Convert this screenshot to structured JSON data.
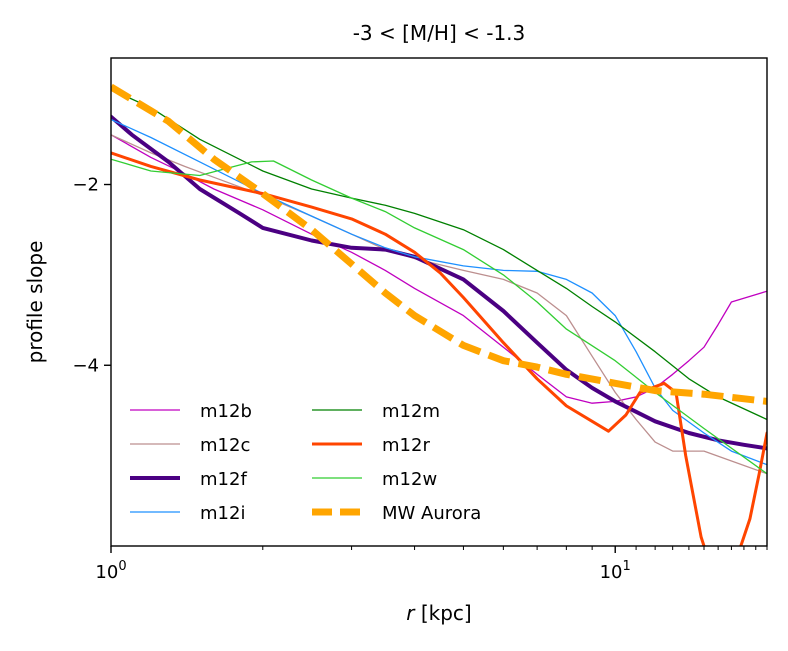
{
  "chart_data": {
    "type": "line",
    "title": "-3 < [M/H] < -1.3",
    "xlabel_italic": "r",
    "xlabel_rest": " [kpc]",
    "ylabel": "profile slope",
    "xscale": "log",
    "xlim": [
      1,
      20
    ],
    "ylim": [
      -6.0,
      -0.6
    ],
    "x_major_ticks": [
      {
        "value": 1,
        "base": "10",
        "exp": "0"
      },
      {
        "value": 10,
        "base": "10",
        "exp": "1"
      }
    ],
    "y_ticks": [
      {
        "value": -2,
        "label": "−2"
      },
      {
        "value": -4,
        "label": "−4"
      }
    ],
    "grid": false,
    "legend": {
      "placement": "lower-left",
      "columns": 2
    },
    "series": [
      {
        "name": "m12b",
        "color": "#c000c0",
        "width": 1.3,
        "points": [
          [
            1,
            -1.45
          ],
          [
            1.2,
            -1.7
          ],
          [
            1.4,
            -1.88
          ],
          [
            1.6,
            -2.05
          ],
          [
            2.0,
            -2.28
          ],
          [
            2.5,
            -2.55
          ],
          [
            3.0,
            -2.75
          ],
          [
            3.5,
            -2.95
          ],
          [
            4.0,
            -3.15
          ],
          [
            5.0,
            -3.45
          ],
          [
            6.0,
            -3.8
          ],
          [
            7.0,
            -4.1
          ],
          [
            8.0,
            -4.35
          ],
          [
            9.0,
            -4.42
          ],
          [
            10,
            -4.4
          ],
          [
            11,
            -4.35
          ],
          [
            12,
            -4.25
          ],
          [
            13,
            -4.1
          ],
          [
            14,
            -3.95
          ],
          [
            15,
            -3.8
          ],
          [
            16,
            -3.55
          ],
          [
            17,
            -3.3
          ],
          [
            20,
            -3.18
          ]
        ]
      },
      {
        "name": "m12c",
        "color": "#bc8f8f",
        "width": 1.3,
        "points": [
          [
            1,
            -1.45
          ],
          [
            1.2,
            -1.65
          ],
          [
            1.4,
            -1.8
          ],
          [
            1.6,
            -1.92
          ],
          [
            2.0,
            -2.12
          ],
          [
            2.5,
            -2.35
          ],
          [
            3.0,
            -2.55
          ],
          [
            3.5,
            -2.72
          ],
          [
            4.0,
            -2.82
          ],
          [
            5.0,
            -2.95
          ],
          [
            6.0,
            -3.05
          ],
          [
            7.0,
            -3.2
          ],
          [
            8.0,
            -3.45
          ],
          [
            9.0,
            -3.9
          ],
          [
            10,
            -4.3
          ],
          [
            11,
            -4.6
          ],
          [
            12,
            -4.85
          ],
          [
            13,
            -4.95
          ],
          [
            15,
            -4.95
          ],
          [
            20,
            -5.2
          ]
        ]
      },
      {
        "name": "m12f",
        "color": "#4b0082",
        "width": 4.0,
        "points": [
          [
            1,
            -1.25
          ],
          [
            1.1,
            -1.45
          ],
          [
            1.3,
            -1.75
          ],
          [
            1.5,
            -2.05
          ],
          [
            1.8,
            -2.32
          ],
          [
            2.0,
            -2.48
          ],
          [
            2.5,
            -2.62
          ],
          [
            3.0,
            -2.7
          ],
          [
            3.5,
            -2.72
          ],
          [
            4.0,
            -2.8
          ],
          [
            5.0,
            -3.05
          ],
          [
            6.0,
            -3.4
          ],
          [
            7.0,
            -3.75
          ],
          [
            8.0,
            -4.05
          ],
          [
            9.0,
            -4.25
          ],
          [
            10,
            -4.4
          ],
          [
            12,
            -4.62
          ],
          [
            14,
            -4.75
          ],
          [
            16,
            -4.83
          ],
          [
            18,
            -4.88
          ],
          [
            20,
            -4.92
          ]
        ]
      },
      {
        "name": "m12i",
        "color": "#1e90ff",
        "width": 1.3,
        "points": [
          [
            1,
            -1.28
          ],
          [
            1.2,
            -1.48
          ],
          [
            1.5,
            -1.75
          ],
          [
            2.0,
            -2.1
          ],
          [
            2.5,
            -2.35
          ],
          [
            3.0,
            -2.55
          ],
          [
            3.5,
            -2.7
          ],
          [
            4.0,
            -2.8
          ],
          [
            5.0,
            -2.9
          ],
          [
            6.0,
            -2.95
          ],
          [
            7.0,
            -2.96
          ],
          [
            8.0,
            -3.05
          ],
          [
            9.0,
            -3.2
          ],
          [
            10,
            -3.45
          ],
          [
            11,
            -3.85
          ],
          [
            12,
            -4.25
          ],
          [
            13,
            -4.5
          ],
          [
            15,
            -4.75
          ],
          [
            17,
            -4.95
          ],
          [
            20,
            -5.1
          ]
        ]
      },
      {
        "name": "m12m",
        "color": "#008000",
        "width": 1.3,
        "points": [
          [
            1,
            -0.95
          ],
          [
            1.2,
            -1.15
          ],
          [
            1.5,
            -1.5
          ],
          [
            2.0,
            -1.85
          ],
          [
            2.5,
            -2.05
          ],
          [
            3.0,
            -2.15
          ],
          [
            3.5,
            -2.23
          ],
          [
            4.0,
            -2.32
          ],
          [
            5.0,
            -2.5
          ],
          [
            6.0,
            -2.72
          ],
          [
            7.0,
            -2.95
          ],
          [
            8.0,
            -3.15
          ],
          [
            9.0,
            -3.35
          ],
          [
            10,
            -3.52
          ],
          [
            12,
            -3.85
          ],
          [
            14,
            -4.15
          ],
          [
            16,
            -4.35
          ],
          [
            20,
            -4.6
          ]
        ]
      },
      {
        "name": "m12r",
        "color": "#ff4500",
        "width": 3.0,
        "points": [
          [
            1,
            -1.65
          ],
          [
            1.2,
            -1.8
          ],
          [
            1.5,
            -1.95
          ],
          [
            2.0,
            -2.1
          ],
          [
            2.5,
            -2.25
          ],
          [
            3.0,
            -2.38
          ],
          [
            3.5,
            -2.55
          ],
          [
            4.0,
            -2.75
          ],
          [
            4.5,
            -2.98
          ],
          [
            5.0,
            -3.25
          ],
          [
            6.0,
            -3.75
          ],
          [
            7.0,
            -4.15
          ],
          [
            8.0,
            -4.45
          ],
          [
            9.0,
            -4.62
          ],
          [
            9.7,
            -4.73
          ],
          [
            10.5,
            -4.55
          ],
          [
            11.2,
            -4.3
          ],
          [
            12.5,
            -4.2
          ],
          [
            13.2,
            -4.3
          ],
          [
            13.8,
            -5.0
          ],
          [
            14.8,
            -5.9
          ],
          [
            15.2,
            -6.1
          ],
          [
            17.5,
            -6.1
          ],
          [
            18.5,
            -5.7
          ],
          [
            19.3,
            -5.2
          ],
          [
            20,
            -4.75
          ]
        ]
      },
      {
        "name": "m12w",
        "color": "#32cd32",
        "width": 1.3,
        "points": [
          [
            1,
            -1.72
          ],
          [
            1.2,
            -1.85
          ],
          [
            1.5,
            -1.9
          ],
          [
            1.7,
            -1.82
          ],
          [
            1.9,
            -1.75
          ],
          [
            2.1,
            -1.74
          ],
          [
            2.5,
            -1.95
          ],
          [
            3.0,
            -2.15
          ],
          [
            3.5,
            -2.3
          ],
          [
            4.0,
            -2.48
          ],
          [
            5.0,
            -2.72
          ],
          [
            6.0,
            -3.0
          ],
          [
            7.0,
            -3.3
          ],
          [
            8.0,
            -3.6
          ],
          [
            10,
            -3.95
          ],
          [
            12,
            -4.3
          ],
          [
            15,
            -4.7
          ],
          [
            20,
            -5.2
          ]
        ]
      },
      {
        "name": "MW Aurora",
        "color": "#ffa500",
        "width": 7.0,
        "dash": "22,9",
        "points": [
          [
            1,
            -0.92
          ],
          [
            1.3,
            -1.3
          ],
          [
            1.6,
            -1.72
          ],
          [
            2.0,
            -2.1
          ],
          [
            2.5,
            -2.5
          ],
          [
            3.0,
            -2.88
          ],
          [
            3.5,
            -3.2
          ],
          [
            4.0,
            -3.45
          ],
          [
            5.0,
            -3.78
          ],
          [
            6.0,
            -3.95
          ],
          [
            7.0,
            -4.02
          ],
          [
            8.0,
            -4.1
          ],
          [
            10,
            -4.2
          ],
          [
            12,
            -4.28
          ],
          [
            15,
            -4.32
          ],
          [
            20,
            -4.4
          ]
        ]
      }
    ]
  }
}
